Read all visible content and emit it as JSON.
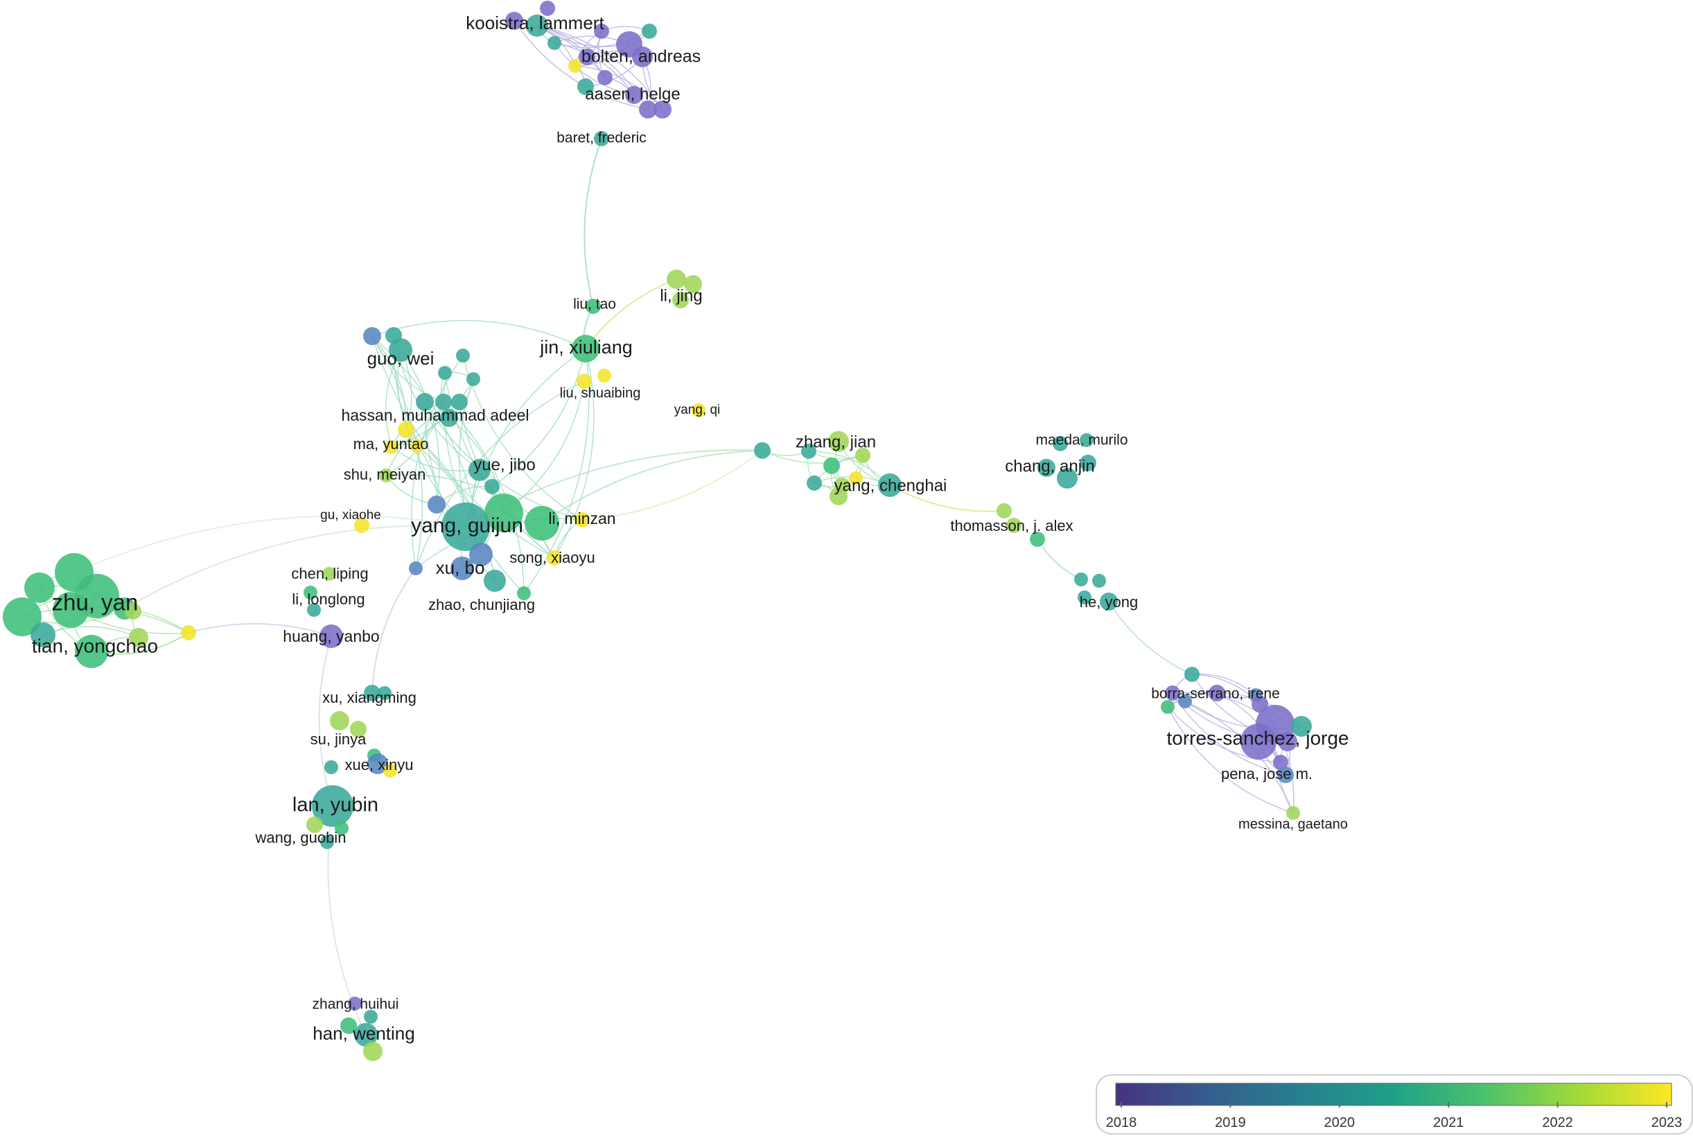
{
  "legend": {
    "ticks": [
      "2018",
      "2019",
      "2020",
      "2021",
      "2022",
      "2023"
    ],
    "gradient": [
      "#46327e",
      "#365c8d",
      "#277f8e",
      "#1fa187",
      "#4ac16d",
      "#a0da39",
      "#fde725"
    ]
  },
  "labels": [
    {
      "id": "kooistra",
      "text": "kooistra, lammert"
    },
    {
      "id": "bolten",
      "text": "bolten, andreas"
    },
    {
      "id": "aasen",
      "text": "aasen, helge"
    },
    {
      "id": "baret",
      "text": "baret, frederic"
    },
    {
      "id": "liutao",
      "text": "liu, tao"
    },
    {
      "id": "lijing",
      "text": "li, jing"
    },
    {
      "id": "guowei",
      "text": "guo, wei"
    },
    {
      "id": "jinxiuliang",
      "text": "jin, xiuliang"
    },
    {
      "id": "liushuaibing",
      "text": "liu, shuaibing"
    },
    {
      "id": "yangqi",
      "text": "yang, qi"
    },
    {
      "id": "hassan",
      "text": "hassan, muhammad adeel"
    },
    {
      "id": "mayuntao",
      "text": "ma, yuntao"
    },
    {
      "id": "shumeiyan",
      "text": "shu, meiyan"
    },
    {
      "id": "yuejibo",
      "text": "yue, jibo"
    },
    {
      "id": "guxiaohe",
      "text": "gu, xiaohe"
    },
    {
      "id": "yangguijun",
      "text": "yang, guijun"
    },
    {
      "id": "liminzan",
      "text": "li, minzan"
    },
    {
      "id": "xubo",
      "text": "xu, bo"
    },
    {
      "id": "songxiaoyu",
      "text": "song, xiaoyu"
    },
    {
      "id": "chenliping",
      "text": "chen, liping"
    },
    {
      "id": "lilonglong",
      "text": "li, longlong"
    },
    {
      "id": "zhaochunjiang",
      "text": "zhao, chunjiang"
    },
    {
      "id": "zhuyan",
      "text": "zhu, yan"
    },
    {
      "id": "tianyongchao",
      "text": "tian, yongchao"
    },
    {
      "id": "huangyanbo",
      "text": "huang, yanbo"
    },
    {
      "id": "xuxiangming",
      "text": "xu, xiangming"
    },
    {
      "id": "sujinya",
      "text": "su, jinya"
    },
    {
      "id": "xuexinyu",
      "text": "xue, xinyu"
    },
    {
      "id": "lanyubin",
      "text": "lan, yubin"
    },
    {
      "id": "wangguobin",
      "text": "wang, guobin"
    },
    {
      "id": "zhanghuihui",
      "text": "zhang, huihui"
    },
    {
      "id": "hanwenting",
      "text": "han, wenting"
    },
    {
      "id": "zhangjian",
      "text": "zhang, jian"
    },
    {
      "id": "yangchenghai",
      "text": "yang, chenghai"
    },
    {
      "id": "maeda",
      "text": "maeda, murilo"
    },
    {
      "id": "changanjin",
      "text": "chang, anjin"
    },
    {
      "id": "thomasson",
      "text": "thomasson, j. alex"
    },
    {
      "id": "heyong",
      "text": "he, yong"
    },
    {
      "id": "borra",
      "text": "borra-serrano, irene"
    },
    {
      "id": "torres",
      "text": "torres-sanchez, jorge"
    },
    {
      "id": "pena",
      "text": "pena, jose m."
    },
    {
      "id": "messina",
      "text": "messina, gaetano"
    }
  ]
}
